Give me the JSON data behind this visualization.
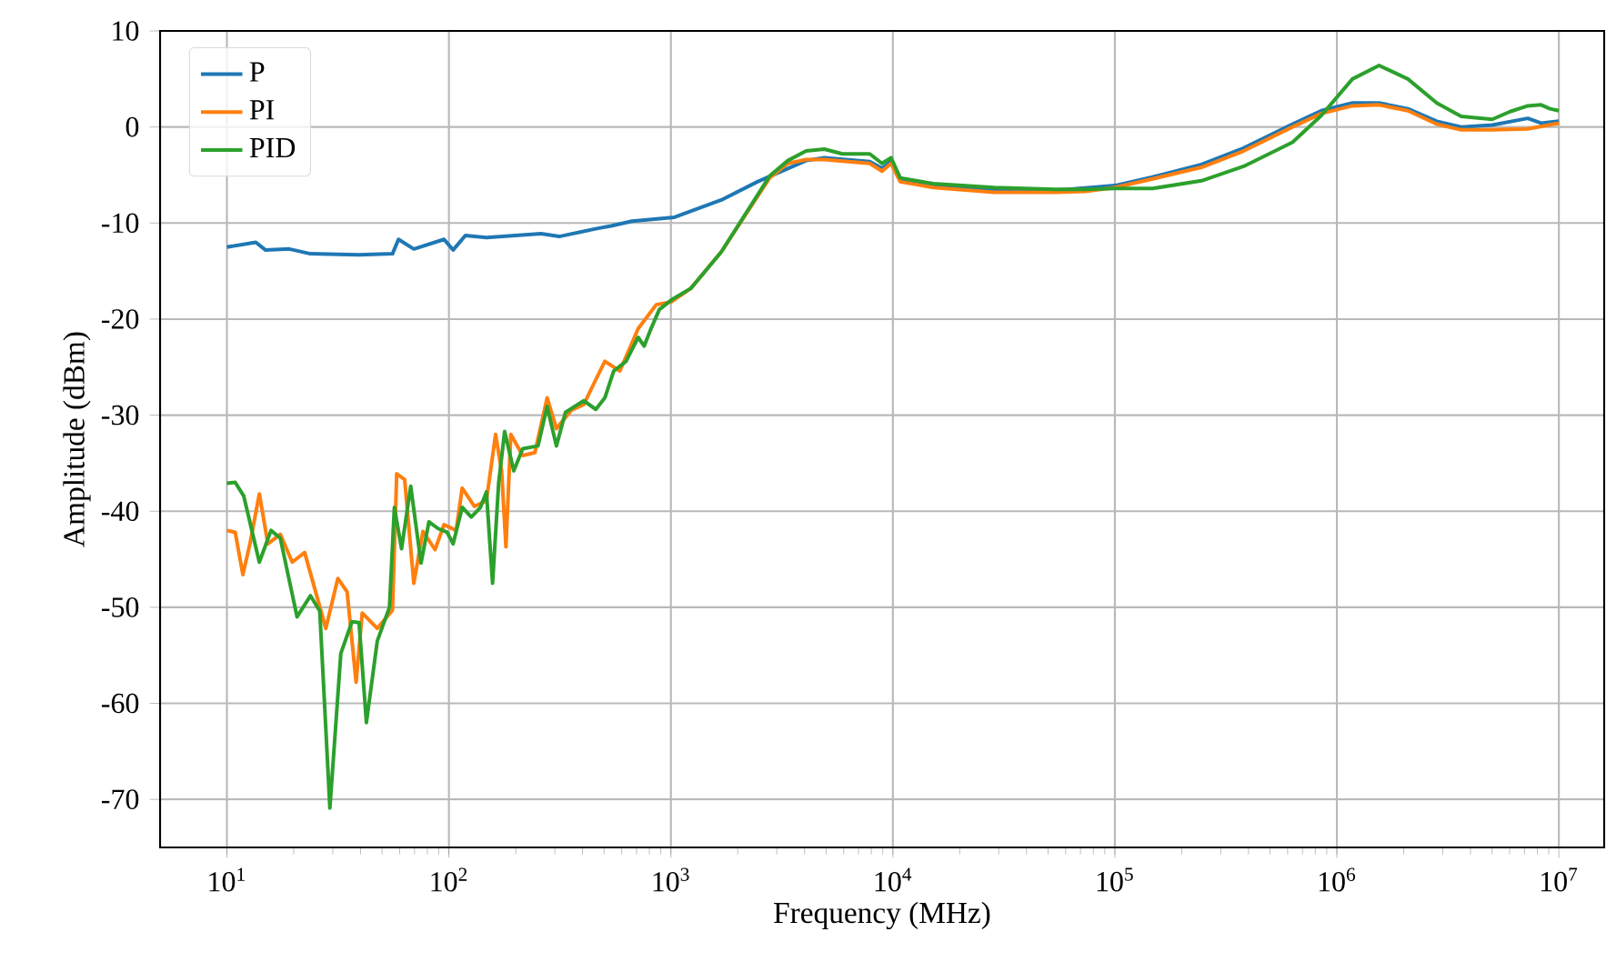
{
  "chart_data": {
    "type": "line",
    "xlabel": "Frequency (MHz)",
    "ylabel": "Amplitude (dBm)",
    "log": "x",
    "xlim": [
      5,
      16000000
    ],
    "ylim": [
      -75,
      10
    ],
    "xticks": [
      {
        "value": 10,
        "label": "10$^{1}$"
      },
      {
        "value": 100,
        "label": "10$^{2}$"
      },
      {
        "value": 1000,
        "label": "10$^{3}$"
      },
      {
        "value": 10000,
        "label": "10$^{4}$"
      },
      {
        "value": 100000,
        "label": "10$^{5}$"
      },
      {
        "value": 1000000,
        "label": "10$^{6}$"
      },
      {
        "value": 10000000,
        "label": "10$^{7}$"
      }
    ],
    "yticks": [
      -70,
      -60,
      -50,
      -40,
      -30,
      -20,
      -10,
      0,
      10
    ],
    "grid": true,
    "legend": "top left",
    "series": [
      {
        "name": "P",
        "color": "#1f77b4",
        "x": [
          10,
          13.5,
          14.9,
          19.1,
          23.8,
          39.4,
          55.7,
          59.3,
          69.5,
          95.1,
          104.5,
          118.6,
          147.6,
          260,
          314,
          458,
          537,
          668,
          1038,
          1687,
          2455,
          4064,
          4909,
          7870,
          8933,
          9817,
          10790,
          15240,
          28580,
          53700,
          100000,
          147900,
          245500,
          380200,
          631000,
          851100,
          1175000,
          1549000,
          2089000,
          2818000,
          3631000,
          5012000,
          7244000,
          8318000,
          10000000
        ],
        "values": [
          -12.5,
          -12.0,
          -12.8,
          -12.7,
          -13.2,
          -13.3,
          -13.2,
          -11.7,
          -12.7,
          -11.7,
          -12.8,
          -11.3,
          -11.5,
          -11.1,
          -11.4,
          -10.6,
          -10.3,
          -9.8,
          -9.4,
          -7.6,
          -5.7,
          -3.5,
          -3.2,
          -3.6,
          -4.3,
          -3.6,
          -5.5,
          -6.1,
          -6.5,
          -6.6,
          -6.1,
          -5.2,
          -3.9,
          -2.2,
          0.3,
          1.7,
          2.5,
          2.5,
          1.9,
          0.6,
          0,
          0.2,
          0.9,
          0.4,
          0.6
        ]
      },
      {
        "name": "PI",
        "color": "#ff7f0e",
        "x": [
          10,
          10.9,
          11.8,
          12.7,
          14.0,
          15.3,
          17.4,
          19.7,
          22.4,
          27.9,
          31.6,
          34.8,
          38.2,
          40.7,
          47.6,
          55.7,
          58.2,
          63.2,
          69.5,
          76.4,
          86.6,
          95.1,
          107.8,
          114.8,
          130.3,
          147.6,
          162.3,
          172.8,
          180.7,
          190.1,
          215,
          244,
          277,
          305,
          356,
          405,
          459,
          504,
          589,
          712,
          859,
          1006,
          1230,
          1687,
          2786,
          3365,
          4064,
          4909,
          7870,
          8933,
          9817,
          10790,
          15240,
          28580,
          53700,
          73450,
          100000,
          147900,
          245500,
          380200,
          631000,
          851100,
          1175000,
          1549000,
          2089000,
          2818000,
          3631000,
          5012000,
          7244000,
          10000000
        ],
        "values": [
          -42.0,
          -42.2,
          -46.6,
          -43.4,
          -38.2,
          -43.4,
          -42.4,
          -45.3,
          -44.3,
          -52.2,
          -47.0,
          -48.4,
          -57.8,
          -50.6,
          -52.2,
          -50.3,
          -36.1,
          -36.7,
          -47.5,
          -42.1,
          -44.0,
          -41.4,
          -42.0,
          -37.6,
          -39.5,
          -38.9,
          -32.0,
          -35.8,
          -43.7,
          -32.0,
          -34.2,
          -33.9,
          -28.2,
          -31.4,
          -29.5,
          -28.9,
          -26.3,
          -24.4,
          -25.4,
          -21.0,
          -18.5,
          -18.2,
          -16.8,
          -13.0,
          -5.3,
          -3.8,
          -3.4,
          -3.4,
          -3.8,
          -4.6,
          -3.8,
          -5.7,
          -6.3,
          -6.8,
          -6.8,
          -6.7,
          -6.3,
          -5.4,
          -4.2,
          -2.5,
          0,
          1.4,
          2.2,
          2.3,
          1.7,
          0.3,
          -0.3,
          -0.3,
          -0.2,
          0.4
        ]
      },
      {
        "name": "PID",
        "color": "#2ca02c",
        "x": [
          10,
          10.9,
          11.9,
          14.0,
          15.8,
          17.4,
          20.7,
          23.8,
          26.2,
          29.1,
          32.6,
          36.6,
          39.4,
          42.5,
          47.6,
          54.0,
          56.8,
          61.2,
          67.3,
          74.9,
          81.3,
          89.3,
          98.2,
          104.5,
          114.8,
          126.2,
          138.7,
          147.6,
          157.3,
          167.5,
          178.3,
          196,
          215,
          252,
          277,
          305,
          335,
          405,
          459,
          504,
          553,
          628,
          712,
          758,
          807,
          887,
          1006,
          1230,
          1687,
          2786,
          3365,
          4064,
          4909,
          5929,
          7870,
          8933,
          9817,
          10790,
          15240,
          28580,
          53700,
          73450,
          100000,
          147900,
          245500,
          380200,
          631000,
          851100,
          1175000,
          1549000,
          2089000,
          2818000,
          3631000,
          5012000,
          6026000,
          7244000,
          8318000,
          9120000,
          10000000
        ],
        "values": [
          -37.1,
          -37.0,
          -38.4,
          -45.3,
          -42.0,
          -42.8,
          -51.0,
          -48.8,
          -50.4,
          -70.9,
          -54.8,
          -51.5,
          -51.6,
          -62.0,
          -53.5,
          -50.0,
          -39.6,
          -43.9,
          -37.4,
          -45.4,
          -41.1,
          -41.8,
          -42.2,
          -43.4,
          -39.6,
          -40.6,
          -39.6,
          -38.0,
          -47.5,
          -37.1,
          -31.7,
          -35.8,
          -33.5,
          -33.2,
          -29.1,
          -33.2,
          -29.7,
          -28.5,
          -29.4,
          -28.2,
          -25.4,
          -24.4,
          -21.9,
          -22.8,
          -21.2,
          -19.0,
          -18.0,
          -16.8,
          -13.0,
          -5.1,
          -3.5,
          -2.5,
          -2.3,
          -2.8,
          -2.8,
          -3.8,
          -3.2,
          -5.3,
          -5.9,
          -6.3,
          -6.5,
          -6.5,
          -6.4,
          -6.4,
          -5.6,
          -4.1,
          -1.6,
          1.2,
          5.0,
          6.4,
          5.0,
          2.5,
          1.1,
          0.8,
          1.6,
          2.2,
          2.3,
          1.9,
          1.7
        ]
      }
    ]
  }
}
